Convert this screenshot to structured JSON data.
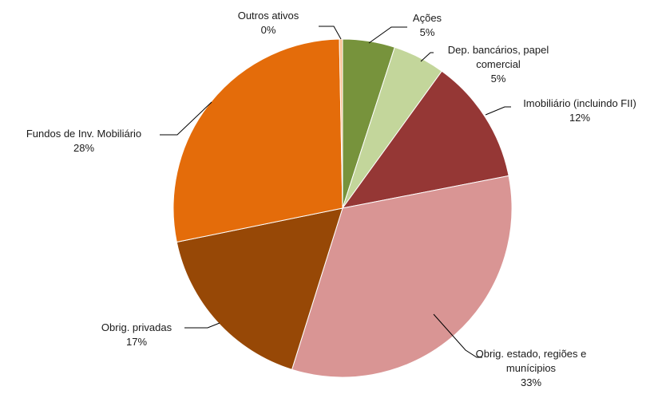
{
  "chart_data": {
    "type": "pie",
    "title": "",
    "start_angle_deg": 0,
    "direction": "clockwise",
    "slices": [
      {
        "label_lines": [
          "Ações"
        ],
        "value_label": "5%",
        "value": 5,
        "color": "#77933c"
      },
      {
        "label_lines": [
          "Dep. bancários, papel",
          "comercial"
        ],
        "value_label": "5%",
        "value": 5,
        "color": "#c3d69b"
      },
      {
        "label_lines": [
          "Imobiliário (incluindo FII)"
        ],
        "value_label": "12%",
        "value": 12,
        "color": "#953735"
      },
      {
        "label_lines": [
          "Obrig. estado, regiões e",
          "munícipios"
        ],
        "value_label": "33%",
        "value": 33,
        "color": "#d99594"
      },
      {
        "label_lines": [
          "Obrig. privadas"
        ],
        "value_label": "17%",
        "value": 17,
        "color": "#974806"
      },
      {
        "label_lines": [
          "Fundos de Inv. Mobiliário"
        ],
        "value_label": "28%",
        "value": 28,
        "color": "#e46c0a"
      },
      {
        "label_lines": [
          "Outros ativos"
        ],
        "value_label": "0%",
        "value": 0.3,
        "color": "#fac090"
      }
    ],
    "legend": "none"
  }
}
